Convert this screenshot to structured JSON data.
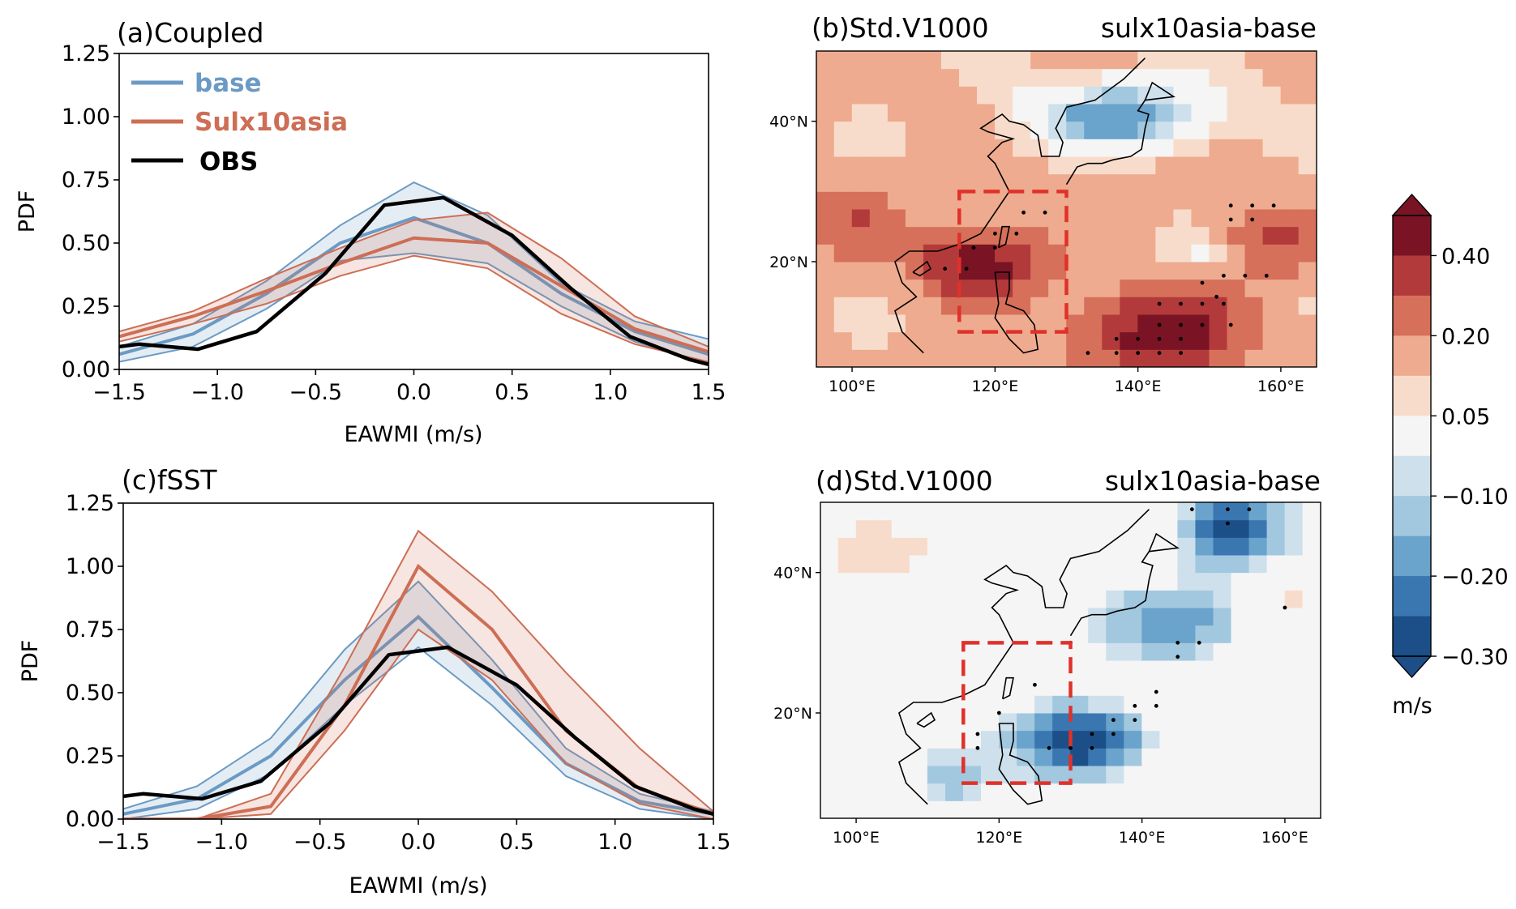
{
  "figure": {
    "colorbar": {
      "unit": "m/s",
      "ticks": [
        "0.40",
        "0.20",
        "0.05",
        "−0.10",
        "−0.20",
        "−0.30"
      ],
      "tick_values": [
        0.4,
        0.2,
        0.05,
        -0.1,
        -0.2,
        -0.3
      ],
      "colors": [
        "#7a1424",
        "#b33a3a",
        "#d6705a",
        "#eeab8f",
        "#f8dccb",
        "#f5f5f5",
        "#cde0ec",
        "#a2c8df",
        "#6aa3cb",
        "#3a77b0",
        "#1c4f88"
      ]
    }
  },
  "chart_data": [
    {
      "panel": "a",
      "type": "line",
      "title": "(a)Coupled",
      "xlabel": "EAWMI (m/s)",
      "ylabel": "PDF",
      "xlim": [
        -1.5,
        1.5
      ],
      "ylim": [
        0,
        1.25
      ],
      "xticks": [
        "−1.5",
        "−1.0",
        "−0.5",
        "0.0",
        "0.5",
        "1.0",
        "1.5"
      ],
      "yticks": [
        "0.00",
        "0.25",
        "0.50",
        "0.75",
        "1.00",
        "1.25"
      ],
      "x": [
        -1.5,
        -1.125,
        -0.75,
        -0.375,
        0.0,
        0.375,
        0.75,
        1.125,
        1.5
      ],
      "legend": [
        "base",
        "Sulx10asia",
        "OBS"
      ],
      "series": [
        {
          "name": "base",
          "color": "#6b9ac4",
          "mean": [
            0.06,
            0.14,
            0.3,
            0.5,
            0.6,
            0.5,
            0.3,
            0.15,
            0.06
          ],
          "lower": [
            0.03,
            0.09,
            0.24,
            0.43,
            0.46,
            0.42,
            0.25,
            0.11,
            0.02
          ],
          "upper": [
            0.09,
            0.18,
            0.35,
            0.57,
            0.74,
            0.61,
            0.34,
            0.19,
            0.12
          ]
        },
        {
          "name": "Sulx10asia",
          "color": "#cd6e55",
          "mean": [
            0.13,
            0.21,
            0.31,
            0.42,
            0.52,
            0.5,
            0.33,
            0.16,
            0.07
          ],
          "lower": [
            0.11,
            0.18,
            0.26,
            0.37,
            0.45,
            0.4,
            0.22,
            0.1,
            0.03
          ],
          "upper": [
            0.15,
            0.23,
            0.36,
            0.48,
            0.59,
            0.62,
            0.44,
            0.21,
            0.09
          ]
        },
        {
          "name": "OBS",
          "color": "#000000",
          "x": [
            -1.5,
            -1.4,
            -1.1,
            -0.8,
            -0.45,
            -0.15,
            0.15,
            0.5,
            0.8,
            1.1,
            1.4,
            1.5
          ],
          "values": [
            0.09,
            0.1,
            0.08,
            0.15,
            0.38,
            0.65,
            0.68,
            0.53,
            0.32,
            0.13,
            0.04,
            0.02
          ]
        }
      ]
    },
    {
      "panel": "b",
      "type": "heatmap",
      "title": "(b)Std.V1000",
      "title_right": "sulx10asia-base",
      "lon_range": [
        95,
        165
      ],
      "lat_range": [
        5,
        50
      ],
      "xticks": [
        "100°E",
        "120°E",
        "140°E",
        "160°E"
      ],
      "yticks": [
        "20°N",
        "40°N"
      ],
      "box": {
        "lon": [
          115,
          130
        ],
        "lat": [
          10,
          30
        ]
      },
      "anomaly": "positive"
    },
    {
      "panel": "c",
      "type": "line",
      "title": "(c)fSST",
      "xlabel": "EAWMI (m/s)",
      "ylabel": "PDF",
      "xlim": [
        -1.5,
        1.5
      ],
      "ylim": [
        0,
        1.25
      ],
      "xticks": [
        "−1.5",
        "−1.0",
        "−0.5",
        "0.0",
        "0.5",
        "1.0",
        "1.5"
      ],
      "yticks": [
        "0.00",
        "0.25",
        "0.50",
        "0.75",
        "1.00",
        "1.25"
      ],
      "x": [
        -1.5,
        -1.125,
        -0.75,
        -0.375,
        0.0,
        0.375,
        0.75,
        1.125,
        1.5
      ],
      "series": [
        {
          "name": "base",
          "color": "#6b9ac4",
          "mean": [
            0.02,
            0.08,
            0.25,
            0.55,
            0.8,
            0.52,
            0.22,
            0.07,
            0.02
          ],
          "lower": [
            0.0,
            0.04,
            0.18,
            0.45,
            0.68,
            0.45,
            0.17,
            0.04,
            0.0
          ],
          "upper": [
            0.04,
            0.13,
            0.32,
            0.67,
            0.94,
            0.63,
            0.28,
            0.1,
            0.03
          ]
        },
        {
          "name": "Sulx10asia",
          "color": "#cd6e55",
          "mean": [
            0.0,
            0.0,
            0.05,
            0.45,
            1.0,
            0.75,
            0.35,
            0.12,
            0.02
          ],
          "lower": [
            0.0,
            0.0,
            0.02,
            0.35,
            0.75,
            0.55,
            0.22,
            0.06,
            0.0
          ],
          "upper": [
            0.0,
            0.0,
            0.1,
            0.6,
            1.14,
            0.9,
            0.58,
            0.28,
            0.03
          ]
        },
        {
          "name": "OBS",
          "color": "#000000",
          "x": [
            -1.5,
            -1.4,
            -1.1,
            -0.8,
            -0.45,
            -0.15,
            0.15,
            0.5,
            0.8,
            1.1,
            1.4,
            1.5
          ],
          "values": [
            0.09,
            0.1,
            0.08,
            0.15,
            0.38,
            0.65,
            0.68,
            0.53,
            0.32,
            0.13,
            0.04,
            0.02
          ]
        }
      ]
    },
    {
      "panel": "d",
      "type": "heatmap",
      "title": "(d)Std.V1000",
      "title_right": "sulx10asia-base",
      "lon_range": [
        95,
        165
      ],
      "lat_range": [
        5,
        50
      ],
      "xticks": [
        "100°E",
        "120°E",
        "140°E",
        "160°E"
      ],
      "yticks": [
        "20°N",
        "40°N"
      ],
      "box": {
        "lon": [
          115,
          130
        ],
        "lat": [
          10,
          30
        ]
      },
      "anomaly": "negative"
    }
  ]
}
